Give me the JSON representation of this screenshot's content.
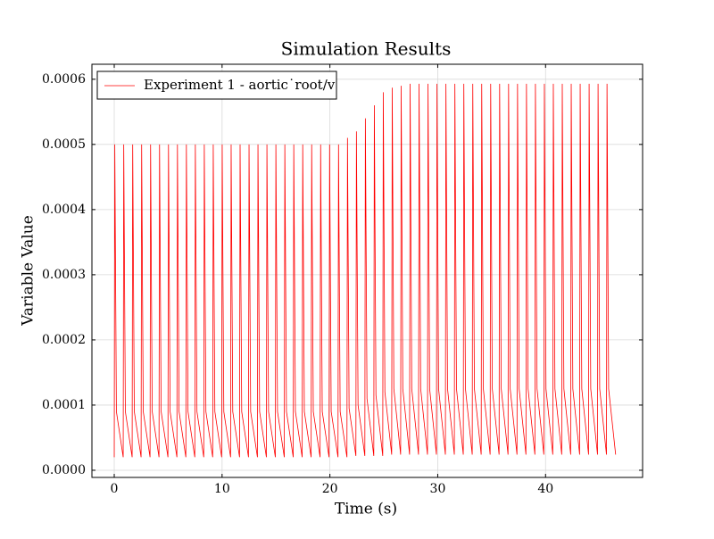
{
  "chart_data": {
    "type": "line",
    "title": "Simulation Results",
    "xlabel": "Time (s)",
    "ylabel": "Variable Value",
    "x": [
      0,
      0.05,
      0.2,
      0.83,
      0.88,
      1.03,
      1.66,
      1.71,
      1.86,
      2.49,
      2.54,
      2.69,
      3.32,
      3.37,
      3.52,
      4.15,
      4.2,
      4.35,
      4.98,
      5.03,
      5.18,
      5.81,
      5.86,
      6.01,
      6.64,
      6.69,
      6.84,
      7.47,
      7.52,
      7.67,
      8.3,
      8.35,
      8.5,
      9.13,
      9.18,
      9.33,
      9.96,
      10.01,
      10.16,
      10.79,
      10.84,
      10.99,
      11.62,
      11.67,
      11.82,
      12.45,
      12.5,
      12.65,
      13.28,
      13.33,
      13.48,
      14.11,
      14.16,
      14.31,
      14.94,
      14.99,
      15.14,
      15.77,
      15.82,
      15.97,
      16.6,
      16.65,
      16.8,
      17.43,
      17.48,
      17.63,
      18.26,
      18.31,
      18.46,
      19.09,
      19.14,
      19.29,
      19.92,
      19.97,
      20.12,
      20.75,
      20.8,
      20.95,
      21.58,
      21.63,
      21.78,
      22.41,
      22.46,
      22.61,
      23.24,
      23.29,
      23.44,
      24.07,
      24.12,
      24.27,
      24.9,
      24.95,
      25.1,
      25.73,
      25.78,
      25.93,
      26.56,
      26.61,
      26.76,
      27.39,
      27.44,
      27.59,
      28.22,
      28.27,
      28.42,
      29.05,
      29.1,
      29.25,
      29.88,
      29.93,
      30.08,
      30.71,
      30.76,
      30.91,
      31.54,
      31.59,
      31.74,
      32.37,
      32.42,
      32.57,
      33.2,
      33.25,
      33.4,
      34.03,
      34.08,
      34.23,
      34.86,
      34.91,
      35.06,
      35.69,
      35.74,
      35.89,
      36.52,
      36.57,
      36.72,
      37.35,
      37.4,
      37.55,
      38.18,
      38.23,
      38.38,
      39.01,
      39.06,
      39.21,
      39.84,
      39.89,
      40.04,
      40.67,
      40.72,
      40.87,
      41.5,
      41.55,
      41.7,
      42.33,
      42.38,
      42.53,
      43.16,
      43.21,
      43.36,
      43.99,
      44.04,
      44.19,
      44.82,
      44.87,
      45.02,
      45.65,
      45.7,
      45.85,
      46.5
    ],
    "series": [
      {
        "name": "Experiment 1 - aortic˙root/v",
        "color": "#ff0000",
        "values": [
          2e-05,
          0.0005,
          9e-05,
          2e-05,
          0.0005,
          9e-05,
          2e-05,
          0.0005,
          9e-05,
          2e-05,
          0.0005,
          9e-05,
          2e-05,
          0.0005,
          9e-05,
          2e-05,
          0.0005,
          9e-05,
          2e-05,
          0.0005,
          9e-05,
          2e-05,
          0.0005,
          9e-05,
          2e-05,
          0.0005,
          9e-05,
          2e-05,
          0.0005,
          9e-05,
          2e-05,
          0.0005,
          9e-05,
          2e-05,
          0.0005,
          9e-05,
          2e-05,
          0.0005,
          9e-05,
          2e-05,
          0.0005,
          9e-05,
          2e-05,
          0.0005,
          9e-05,
          2e-05,
          0.0005,
          9e-05,
          2e-05,
          0.0005,
          9e-05,
          2e-05,
          0.0005,
          9e-05,
          2e-05,
          0.0005,
          9e-05,
          2e-05,
          0.0005,
          9e-05,
          2e-05,
          0.0005,
          9e-05,
          2e-05,
          0.0005,
          9e-05,
          2e-05,
          0.0005,
          9e-05,
          2e-05,
          0.0005,
          9e-05,
          2e-05,
          0.0005,
          9e-05,
          2e-05,
          0.0005,
          9e-05,
          2e-05,
          0.00051,
          9.5e-05,
          2.2e-05,
          0.00052,
          0.0001,
          2.2e-05,
          0.00054,
          0.00011,
          2.2e-05,
          0.00056,
          0.000115,
          2.2e-05,
          0.00058,
          0.00012,
          2.4e-05,
          0.000587,
          0.000125,
          2.4e-05,
          0.00059,
          0.000125,
          2.4e-05,
          0.000593,
          0.000125,
          2.4e-05,
          0.000593,
          0.000125,
          2.4e-05,
          0.000593,
          0.000125,
          2.4e-05,
          0.000593,
          0.000125,
          2.4e-05,
          0.000593,
          0.000125,
          2.4e-05,
          0.000593,
          0.000125,
          2.4e-05,
          0.000593,
          0.000125,
          2.4e-05,
          0.000593,
          0.000125,
          2.4e-05,
          0.000593,
          0.000125,
          2.4e-05,
          0.000593,
          0.000125,
          2.4e-05,
          0.000593,
          0.000125,
          2.4e-05,
          0.000593,
          0.000125,
          2.4e-05,
          0.000593,
          0.000125,
          2.4e-05,
          0.000593,
          0.000125,
          2.4e-05,
          0.000593,
          0.000125,
          2.4e-05,
          0.000593,
          0.000125,
          2.4e-05,
          0.000593,
          0.000125,
          2.4e-05,
          0.000593,
          0.000125,
          2.4e-05,
          0.000593,
          0.000125,
          2.4e-05,
          0.000593,
          0.000125,
          2.4e-05,
          0.000593,
          0.000125,
          2.4e-05,
          0.000593,
          0.000125,
          2.4e-05,
          0.000593,
          0.000125,
          2.4e-05
        ]
      }
    ],
    "xlim": [
      -2.07,
      49
    ],
    "ylim": [
      -1.1e-05,
      0.000623
    ],
    "xticks": [
      0,
      10,
      20,
      30,
      40
    ],
    "yticks": [
      {
        "value": 0,
        "label": "0.0000"
      },
      0.0001,
      0.0002,
      0.0003,
      0.0004,
      0.0005,
      0.0006
    ],
    "grid": true,
    "legend": "upper left"
  }
}
